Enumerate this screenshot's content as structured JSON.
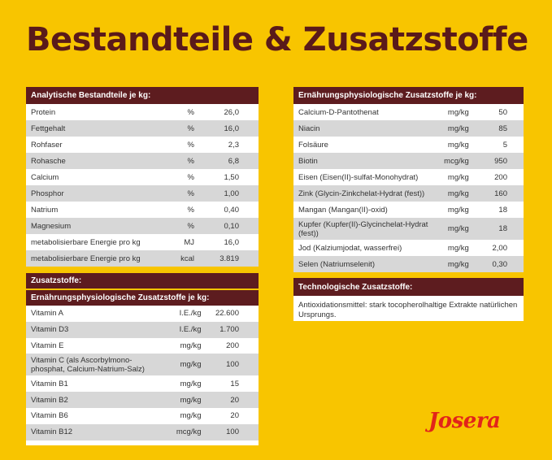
{
  "title": "Bestandteile & Zusatzstoffe",
  "analytical": {
    "header": "Analytische Bestandteile je kg:",
    "rows": [
      {
        "name": "Protein",
        "unit": "%",
        "value": "26,0"
      },
      {
        "name": "Fettgehalt",
        "unit": "%",
        "value": "16,0"
      },
      {
        "name": "Rohfaser",
        "unit": "%",
        "value": "2,3"
      },
      {
        "name": "Rohasche",
        "unit": "%",
        "value": "6,8"
      },
      {
        "name": "Calcium",
        "unit": "%",
        "value": "1,50"
      },
      {
        "name": "Phosphor",
        "unit": "%",
        "value": "1,00"
      },
      {
        "name": "Natrium",
        "unit": "%",
        "value": "0,40"
      },
      {
        "name": "Magnesium",
        "unit": "%",
        "value": "0,10"
      },
      {
        "name": "metabolisierbare Energie pro kg",
        "unit": "MJ",
        "value": "16,0"
      },
      {
        "name": "metabolisierbare Energie pro kg",
        "unit": "kcal",
        "value": "3.819"
      }
    ]
  },
  "additives": {
    "header": "Zusatzstoffe:",
    "subheader": "Ernährungsphysiologische Zusatzstoffe je kg:",
    "rows": [
      {
        "name": "Vitamin A",
        "unit": "I.E./kg",
        "value": "22.600"
      },
      {
        "name": "Vitamin D3",
        "unit": "I.E./kg",
        "value": "1.700"
      },
      {
        "name": "Vitamin E",
        "unit": "mg/kg",
        "value": "200"
      },
      {
        "name": "Vitamin C (als Ascorbylmono-phosphat, Calcium-Natrium-Salz)",
        "unit": "mg/kg",
        "value": "100"
      },
      {
        "name": "Vitamin B1",
        "unit": "mg/kg",
        "value": "15"
      },
      {
        "name": "Vitamin B2",
        "unit": "mg/kg",
        "value": "20"
      },
      {
        "name": "Vitamin B6",
        "unit": "mg/kg",
        "value": "20"
      },
      {
        "name": "Vitamin B12",
        "unit": "mcg/kg",
        "value": "100"
      }
    ]
  },
  "nutritional": {
    "header": "Ernährungsphysiologische Zusatzstoffe je kg:",
    "rows": [
      {
        "name": "Calcium-D-Pantothenat",
        "unit": "mg/kg",
        "value": "50"
      },
      {
        "name": "Niacin",
        "unit": "mg/kg",
        "value": "85"
      },
      {
        "name": "Folsäure",
        "unit": "mg/kg",
        "value": "5"
      },
      {
        "name": "Biotin",
        "unit": "mcg/kg",
        "value": "950"
      },
      {
        "name": "Eisen (Eisen(II)-sulfat-Monohydrat)",
        "unit": "mg/kg",
        "value": "200"
      },
      {
        "name": "Zink (Glycin-Zinkchelat-Hydrat (fest))",
        "unit": "mg/kg",
        "value": "160"
      },
      {
        "name": "Mangan (Mangan(II)-oxid)",
        "unit": "mg/kg",
        "value": "18"
      },
      {
        "name": "Kupfer (Kupfer(II)-Glycinchelat-Hydrat (fest))",
        "unit": "mg/kg",
        "value": "18"
      },
      {
        "name": "Jod (Kalziumjodat, wasserfrei)",
        "unit": "mg/kg",
        "value": "2,00"
      },
      {
        "name": "Selen (Natriumselenit)",
        "unit": "mg/kg",
        "value": "0,30"
      }
    ]
  },
  "technological": {
    "header": "Technologische Zusatzstoffe:",
    "text": "Antioxidationsmittel: stark tocopherolhaltige Extrakte natürlichen Ursprungs."
  },
  "brand": "Josera"
}
